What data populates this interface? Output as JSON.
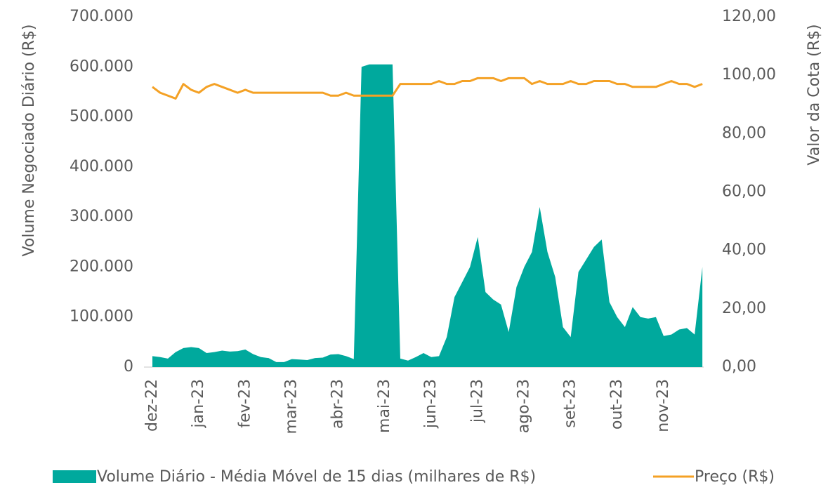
{
  "chart_data": {
    "type": "combo",
    "y_label": "Volume Negociado Diário (R$)",
    "y2_label": "Valor da Cota (R$)",
    "categories": [
      "dez-22",
      null,
      null,
      null,
      null,
      null,
      "jan-23",
      null,
      null,
      null,
      null,
      null,
      "fev-23",
      null,
      null,
      null,
      null,
      null,
      "mar-23",
      null,
      null,
      null,
      null,
      null,
      "abr-23",
      null,
      null,
      null,
      null,
      null,
      "mai-23",
      null,
      null,
      null,
      null,
      null,
      "jun-23",
      null,
      null,
      null,
      null,
      null,
      "jul-23",
      null,
      null,
      null,
      null,
      null,
      "ago-23",
      null,
      null,
      null,
      null,
      null,
      "set-23",
      null,
      null,
      null,
      null,
      null,
      "out-23",
      null,
      null,
      null,
      null,
      null,
      "nov-23",
      null,
      null,
      null,
      null,
      null
    ],
    "series": [
      {
        "name": "Volume Diário - Média Móvel de 15 dias (milhares de R$)",
        "type": "area",
        "color": "#00a99d",
        "values": [
          22000,
          20000,
          17000,
          30000,
          38000,
          40000,
          38000,
          28000,
          30000,
          33000,
          31000,
          32000,
          35000,
          26000,
          20000,
          18000,
          10000,
          10000,
          16000,
          15000,
          14000,
          18000,
          19000,
          25000,
          26000,
          22000,
          16000,
          600000,
          605000,
          605000,
          605000,
          605000,
          17000,
          13000,
          20000,
          28000,
          20000,
          22000,
          60000,
          140000,
          170000,
          200000,
          260000,
          150000,
          135000,
          125000,
          70000,
          160000,
          200000,
          230000,
          320000,
          230000,
          180000,
          80000,
          60000,
          190000,
          215000,
          240000,
          255000,
          130000,
          100000,
          80000,
          120000,
          100000,
          97000,
          100000,
          62000,
          65000,
          75000,
          78000,
          65000,
          200000
        ]
      },
      {
        "name": "Preço (R$)",
        "type": "line",
        "color": "#f4a125",
        "axis": "y2",
        "values": [
          96,
          94,
          93,
          92,
          97,
          95,
          94,
          96,
          97,
          96,
          95,
          94,
          95,
          94,
          94,
          94,
          94,
          94,
          94,
          94,
          94,
          94,
          94,
          93,
          93,
          94,
          93,
          93,
          93,
          93,
          93,
          93,
          97,
          97,
          97,
          97,
          97,
          98,
          97,
          97,
          98,
          98,
          99,
          99,
          99,
          98,
          99,
          99,
          99,
          97,
          98,
          97,
          97,
          97,
          98,
          97,
          97,
          98,
          98,
          98,
          97,
          97,
          96,
          96,
          96,
          96,
          97,
          98,
          97,
          97,
          96,
          97
        ]
      }
    ],
    "ylim": [
      0,
      700000
    ],
    "yticks": [
      0,
      {
        "value": 100000,
        "label": "100.000"
      },
      {
        "value": 200000,
        "label": "200.000"
      },
      {
        "value": 300000,
        "label": "300.000"
      },
      {
        "value": 400000,
        "label": "400.000"
      },
      {
        "value": 500000,
        "label": "500.000"
      },
      {
        "value": 600000,
        "label": "600.000"
      },
      {
        "value": 700000,
        "label": "700.000"
      }
    ],
    "y2lim": [
      0,
      120
    ],
    "y2ticks": [
      {
        "value": 0,
        "label": "0,00"
      },
      {
        "value": 20,
        "label": "20,00"
      },
      {
        "value": 40,
        "label": "40,00"
      },
      {
        "value": 60,
        "label": "60,00"
      },
      {
        "value": 80,
        "label": "80,00"
      },
      {
        "value": 100,
        "label": "100,00"
      },
      {
        "value": 120,
        "label": "120,00"
      }
    ],
    "grid": false
  }
}
